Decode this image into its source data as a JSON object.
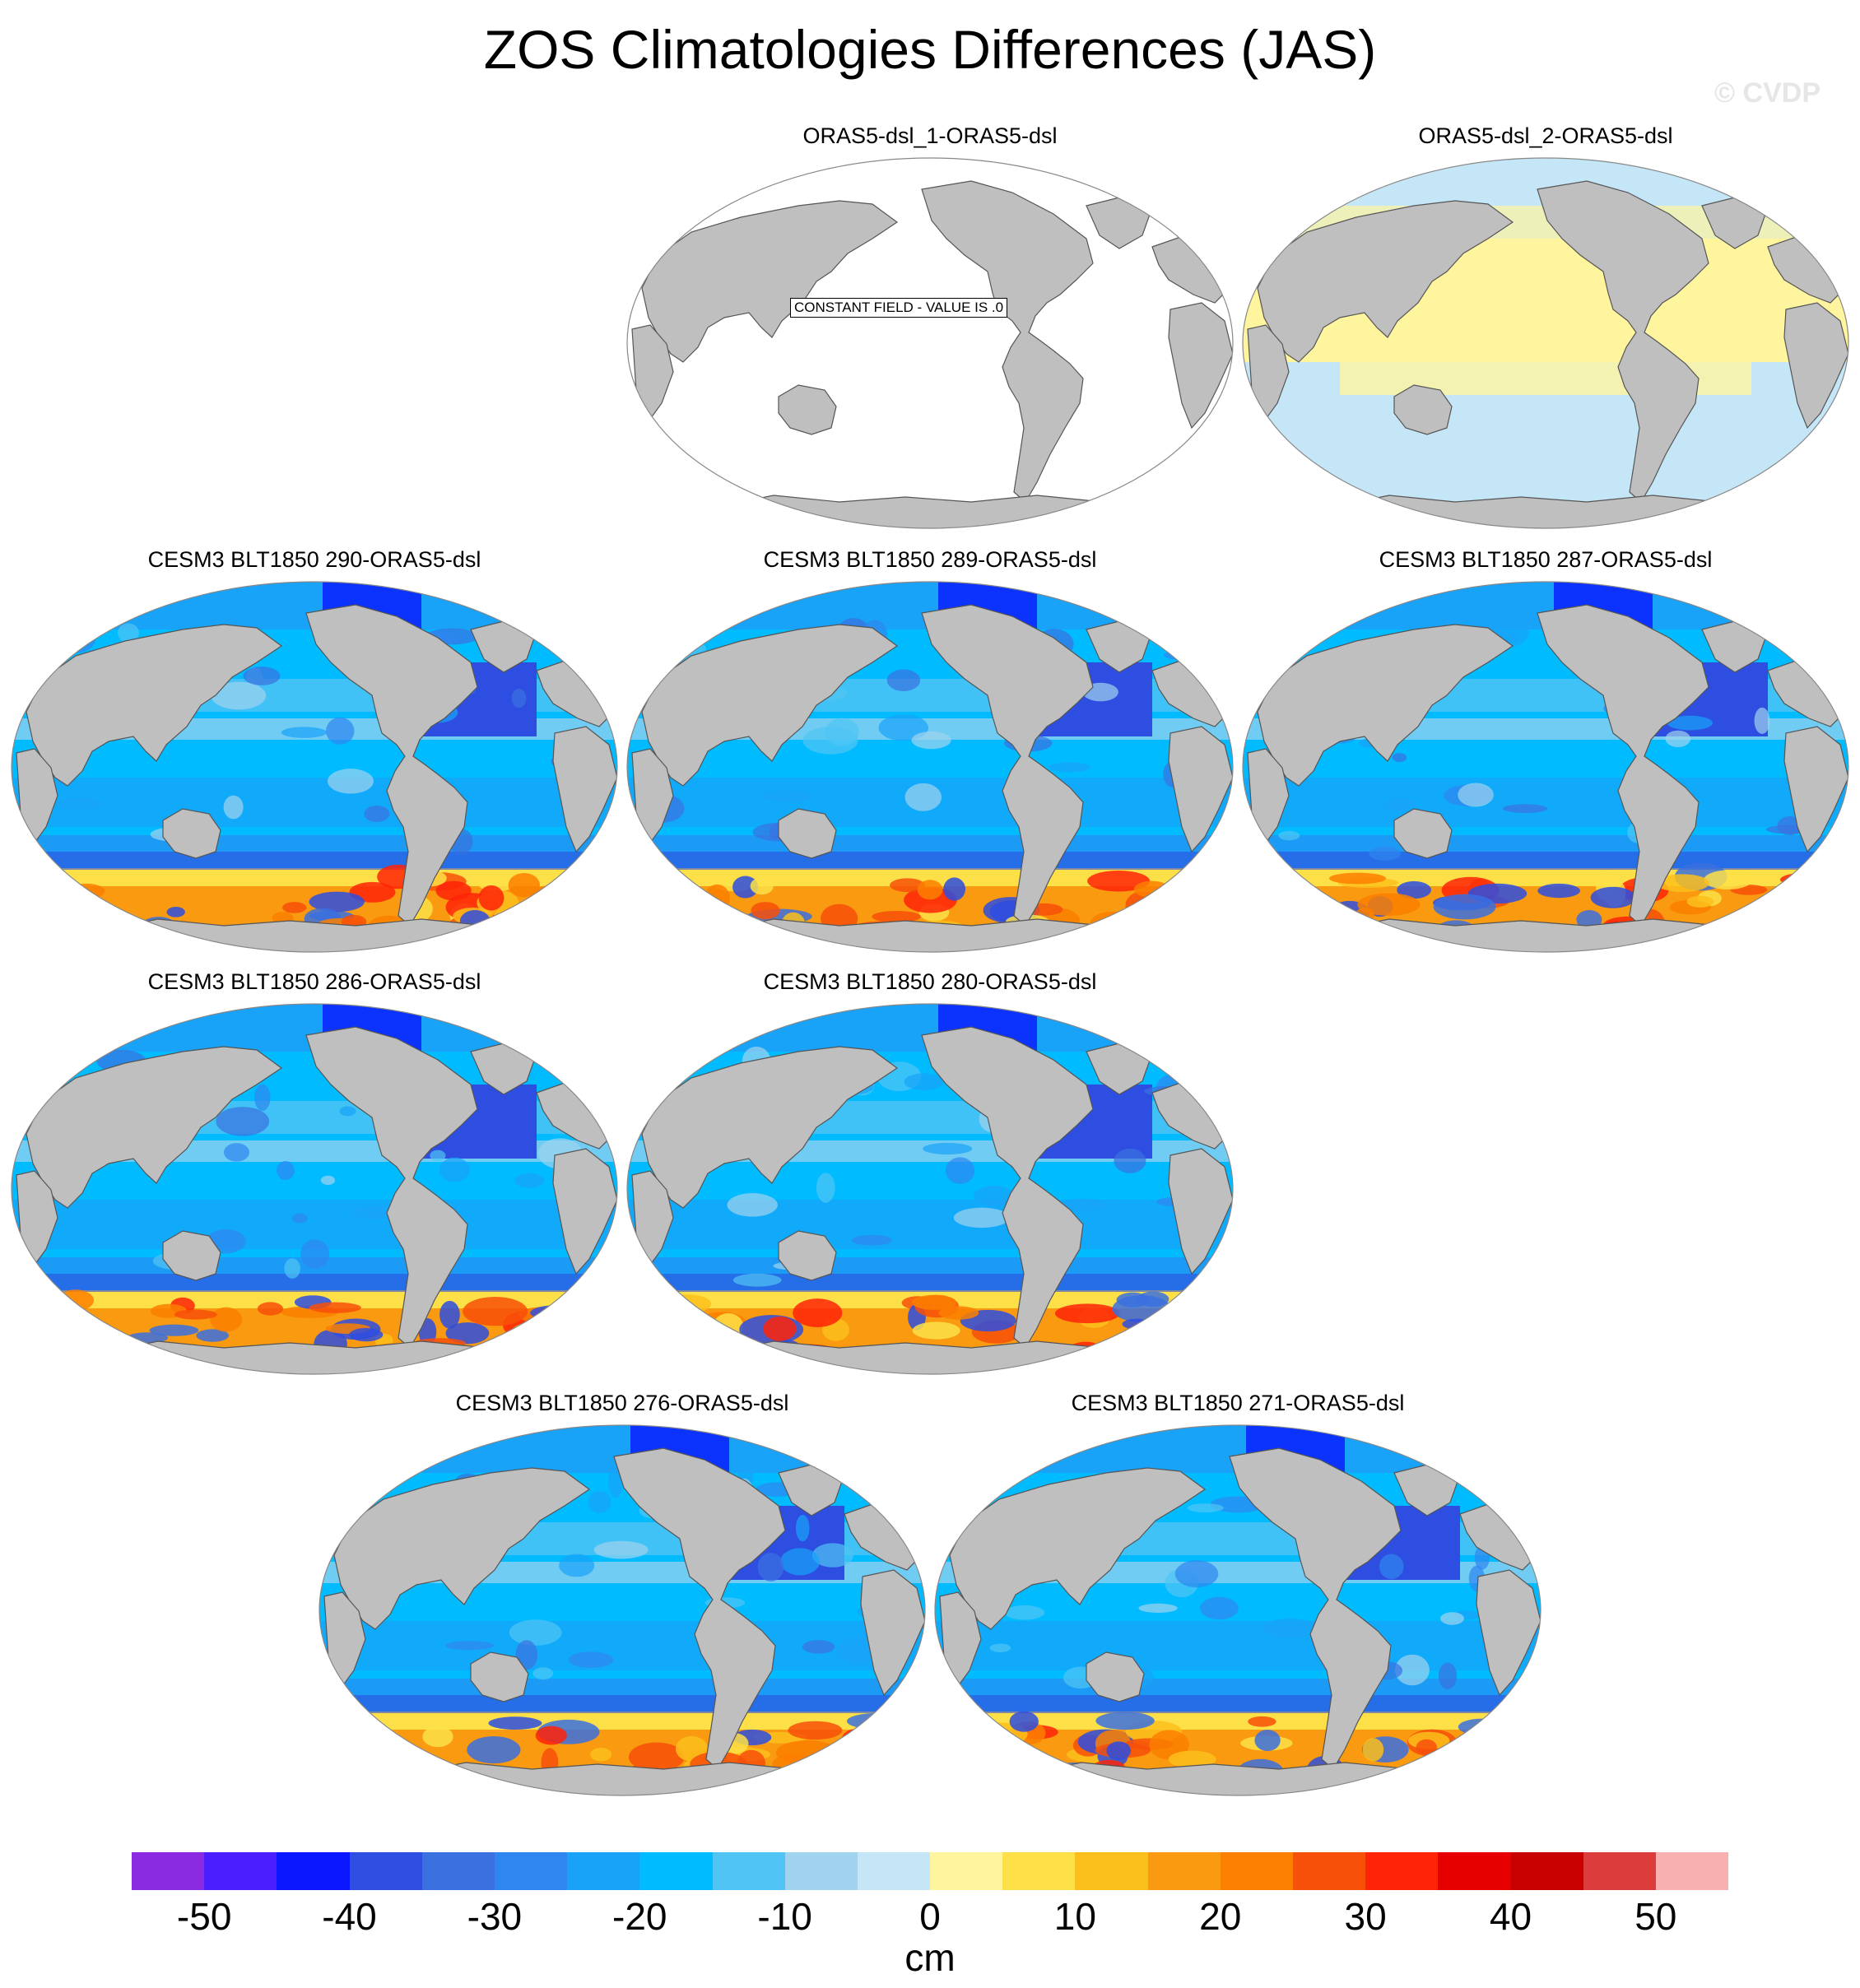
{
  "title": "ZOS Climatologies Differences (JAS)",
  "watermark": "© CVDP",
  "constant_note": "CONSTANT FIELD - VALUE IS .0",
  "panels": [
    {
      "label": "ORAS5-dsl_1-ORAS5-dsl",
      "style": "constant"
    },
    {
      "label": "ORAS5-dsl_2-ORAS5-dsl",
      "style": "near-zero"
    },
    {
      "label": "CESM3 BLT1850 290-ORAS5-dsl",
      "style": "model"
    },
    {
      "label": "CESM3 BLT1850 289-ORAS5-dsl",
      "style": "model"
    },
    {
      "label": "CESM3 BLT1850 287-ORAS5-dsl",
      "style": "model"
    },
    {
      "label": "CESM3 BLT1850 286-ORAS5-dsl",
      "style": "model"
    },
    {
      "label": "CESM3 BLT1850 280-ORAS5-dsl",
      "style": "model"
    },
    {
      "label": "CESM3 BLT1850 276-ORAS5-dsl",
      "style": "model"
    },
    {
      "label": "CESM3 BLT1850 271-ORAS5-dsl",
      "style": "model"
    }
  ],
  "colorbar": {
    "colors": [
      "#8a2be2",
      "#4b1eff",
      "#0a16ff",
      "#2d4ee0",
      "#3a70e0",
      "#2f86f0",
      "#18a2f8",
      "#00bbff",
      "#50c4f4",
      "#9fd3ee",
      "#c4e6f7",
      "#fff59e",
      "#fde047",
      "#fbbf1b",
      "#f99a10",
      "#fb7f00",
      "#f75009",
      "#ff2308",
      "#e60000",
      "#c80000",
      "#dc3c3c",
      "#f8b0b0"
    ],
    "ticks": [
      "-50",
      "-40",
      "-30",
      "-20",
      "-10",
      "0",
      "10",
      "20",
      "30",
      "40",
      "50"
    ],
    "unit": "cm"
  },
  "colors": {
    "land": "#bfbfbf",
    "coast": "#555555"
  }
}
